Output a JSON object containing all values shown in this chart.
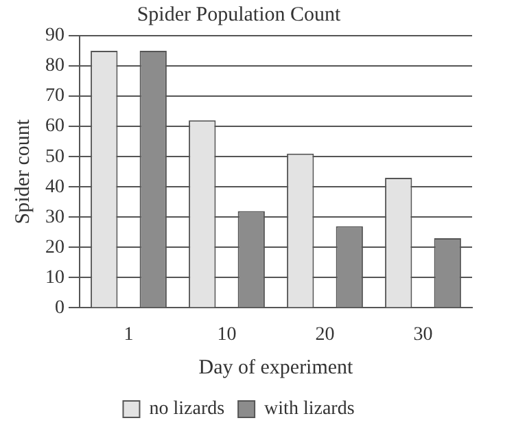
{
  "chart_data": {
    "type": "bar",
    "title": "Spider Population Count",
    "xlabel": "Day of experiment",
    "ylabel": "Spider count",
    "categories": [
      "1",
      "10",
      "20",
      "30"
    ],
    "series": [
      {
        "name": "no lizards",
        "color": "#e3e3e3",
        "values": [
          85,
          62,
          51,
          43
        ]
      },
      {
        "name": "with lizards",
        "color": "#8c8c8c",
        "values": [
          85,
          32,
          27,
          23
        ]
      }
    ],
    "ylim": [
      0,
      90
    ],
    "yticks": [
      0,
      10,
      20,
      30,
      40,
      50,
      60,
      70,
      80,
      90
    ],
    "grid": "y",
    "legend": "bottom"
  }
}
